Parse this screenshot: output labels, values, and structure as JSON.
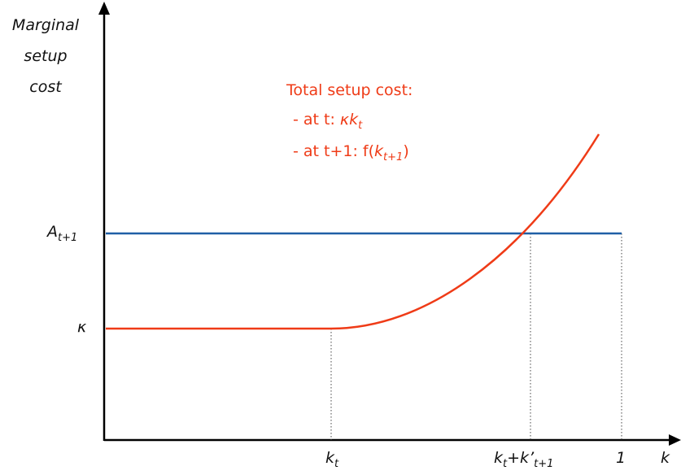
{
  "y_axis_label": {
    "line1": "Marginal",
    "line2": "setup",
    "line3": "cost"
  },
  "x_axis_label": "k",
  "y_ticks": {
    "A": {
      "base": "A",
      "sub": "t+1"
    },
    "kappa": "κ"
  },
  "x_ticks": {
    "kt": {
      "base": "k",
      "sub": "t"
    },
    "sum": {
      "base1": "k",
      "sub1": "t",
      "plus": "+",
      "base2": "k",
      "prime": "’",
      "sub2": "t+1"
    },
    "one": "1"
  },
  "annotation": {
    "title": "Total setup cost:",
    "line1_prefix": "- at t: ",
    "line1_math": "κk",
    "line1_sub": "t",
    "line2_prefix": "- at t+1: f(",
    "line2_math": "k",
    "line2_sub": "t+1",
    "line2_suffix": ")"
  },
  "colors": {
    "axis": "#000000",
    "horizontal_line": "#1f5fa6",
    "curve": "#ef3b17",
    "guides": "#444444"
  }
}
